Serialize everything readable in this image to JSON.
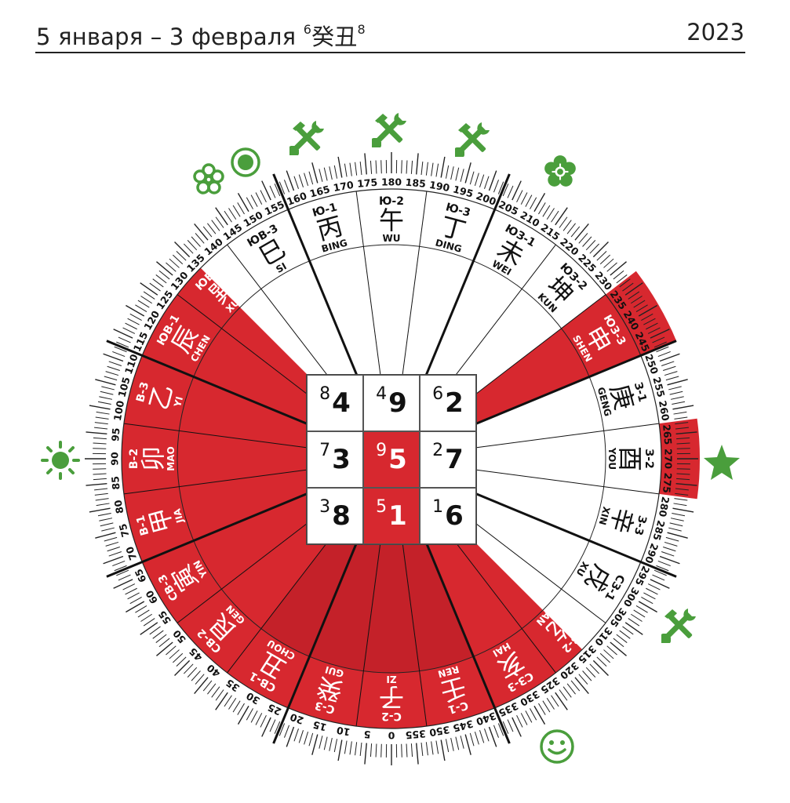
{
  "header": {
    "date_range": "5 января – 3 февраля",
    "month_star_left": "6",
    "month_pillar": "癸丑",
    "month_star_right": "8",
    "year": "2023"
  },
  "colors": {
    "red": "#d7282f",
    "green": "#4a9e3c",
    "ink": "#111111"
  },
  "red_sectors_degrees": {
    "main_wedge": [
      315,
      135
    ],
    "shen_wedge": [
      232.5,
      247.5
    ],
    "you_outer_band": [
      262.5,
      277.5
    ]
  },
  "degree_labels": [
    0,
    5,
    10,
    15,
    20,
    25,
    30,
    35,
    40,
    45,
    50,
    55,
    60,
    65,
    70,
    75,
    80,
    85,
    90,
    95,
    100,
    105,
    110,
    115,
    120,
    125,
    130,
    135,
    140,
    145,
    150,
    155,
    160,
    165,
    170,
    175,
    180,
    185,
    190,
    195,
    200,
    205,
    210,
    215,
    220,
    225,
    230,
    235,
    240,
    245,
    250,
    255,
    260,
    265,
    270,
    275,
    280,
    285,
    290,
    295,
    300,
    305,
    310,
    315,
    320,
    325,
    330,
    335,
    340,
    345,
    350,
    355
  ],
  "mountains": [
    {
      "deg": 0,
      "code": "С-2",
      "hanzi": "子",
      "pinyin": "ZI"
    },
    {
      "deg": 15,
      "code": "С-3",
      "hanzi": "癸",
      "pinyin": "GUI"
    },
    {
      "deg": 30,
      "code": "СВ-1",
      "hanzi": "丑",
      "pinyin": "CHOU"
    },
    {
      "deg": 45,
      "code": "СВ-2",
      "hanzi": "艮",
      "pinyin": "GEN"
    },
    {
      "deg": 60,
      "code": "СВ-3",
      "hanzi": "寅",
      "pinyin": "YIN"
    },
    {
      "deg": 75,
      "code": "В-1",
      "hanzi": "甲",
      "pinyin": "JIA"
    },
    {
      "deg": 90,
      "code": "В-2",
      "hanzi": "卯",
      "pinyin": "MAO"
    },
    {
      "deg": 105,
      "code": "В-3",
      "hanzi": "乙",
      "pinyin": "YI"
    },
    {
      "deg": 120,
      "code": "ЮВ-1",
      "hanzi": "辰",
      "pinyin": "CHEN"
    },
    {
      "deg": 135,
      "code": "ЮВ-2",
      "hanzi": "巽",
      "pinyin": "XUN"
    },
    {
      "deg": 150,
      "code": "ЮВ-3",
      "hanzi": "巳",
      "pinyin": "SI"
    },
    {
      "deg": 165,
      "code": "Ю-1",
      "hanzi": "丙",
      "pinyin": "BING"
    },
    {
      "deg": 180,
      "code": "Ю-2",
      "hanzi": "午",
      "pinyin": "WU"
    },
    {
      "deg": 195,
      "code": "Ю-3",
      "hanzi": "丁",
      "pinyin": "DING"
    },
    {
      "deg": 210,
      "code": "ЮЗ-1",
      "hanzi": "未",
      "pinyin": "WEI"
    },
    {
      "deg": 225,
      "code": "ЮЗ-2",
      "hanzi": "坤",
      "pinyin": "KUN"
    },
    {
      "deg": 240,
      "code": "ЮЗ-3",
      "hanzi": "申",
      "pinyin": "SHEN"
    },
    {
      "deg": 255,
      "code": "З-1",
      "hanzi": "庚",
      "pinyin": "GENG"
    },
    {
      "deg": 270,
      "code": "З-2",
      "hanzi": "酉",
      "pinyin": "YOU"
    },
    {
      "deg": 285,
      "code": "З-3",
      "hanzi": "辛",
      "pinyin": "XIN"
    },
    {
      "deg": 300,
      "code": "СЗ-1",
      "hanzi": "戌",
      "pinyin": "XU"
    },
    {
      "deg": 315,
      "code": "СЗ-2",
      "hanzi": "乾",
      "pinyin": "QIAN"
    },
    {
      "deg": 330,
      "code": "СЗ-3",
      "hanzi": "亥",
      "pinyin": "HAI"
    },
    {
      "deg": 345,
      "code": "С-1",
      "hanzi": "壬",
      "pinyin": "REN"
    }
  ],
  "grid": [
    {
      "small": "8",
      "big": "4",
      "red": false
    },
    {
      "small": "4",
      "big": "9",
      "red": false
    },
    {
      "small": "6",
      "big": "2",
      "red": false
    },
    {
      "small": "7",
      "big": "3",
      "red": false
    },
    {
      "small": "9",
      "big": "5",
      "red": true
    },
    {
      "small": "2",
      "big": "7",
      "red": false
    },
    {
      "small": "3",
      "big": "8",
      "red": false
    },
    {
      "small": "5",
      "big": "1",
      "red": true
    },
    {
      "small": "1",
      "big": "6",
      "red": false
    }
  ],
  "icons": [
    "flower-outline-icon",
    "target-icon",
    "hammer-wrench-icon",
    "hammer-wrench-icon",
    "hammer-wrench-icon",
    "flower-gear-icon",
    "sun-icon",
    "star-icon",
    "hammer-wrench-icon",
    "smiley-icon"
  ]
}
